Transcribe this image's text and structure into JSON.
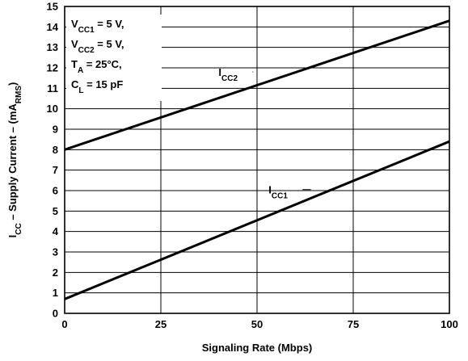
{
  "chart_data": {
    "type": "line",
    "title": "",
    "xlabel": "Signaling Rate (Mbps)",
    "ylabel": {
      "prefix": "I",
      "prefix_sub": "CC",
      "middle": " – Supply Current – (mA",
      "unit_sub": "RMS",
      "suffix": ")"
    },
    "xlim": [
      0,
      100
    ],
    "ylim": [
      0,
      15
    ],
    "x_ticks": [
      "0",
      "25",
      "50",
      "75",
      "100"
    ],
    "y_ticks": [
      "0",
      "1",
      "2",
      "3",
      "4",
      "5",
      "6",
      "7",
      "8",
      "9",
      "10",
      "11",
      "12",
      "13",
      "14",
      "15"
    ],
    "grid": true,
    "conditions": [
      {
        "main": "V",
        "sub": "CC1",
        "rest": " = 5 V,"
      },
      {
        "main": "V",
        "sub": "CC2",
        "rest": " = 5 V,"
      },
      {
        "main": "T",
        "sub": "A",
        "rest": " = 25°C,"
      },
      {
        "main": "C",
        "sub": "L",
        "rest": " = 15 pF"
      }
    ],
    "series": [
      {
        "name": {
          "main": "I",
          "sub": "CC2"
        },
        "x": [
          0,
          100
        ],
        "y": [
          8.0,
          14.3
        ]
      },
      {
        "name": {
          "main": "I",
          "sub": "CC1"
        },
        "x": [
          0,
          100
        ],
        "y": [
          0.7,
          8.4
        ]
      }
    ],
    "line_color": "#000000"
  }
}
